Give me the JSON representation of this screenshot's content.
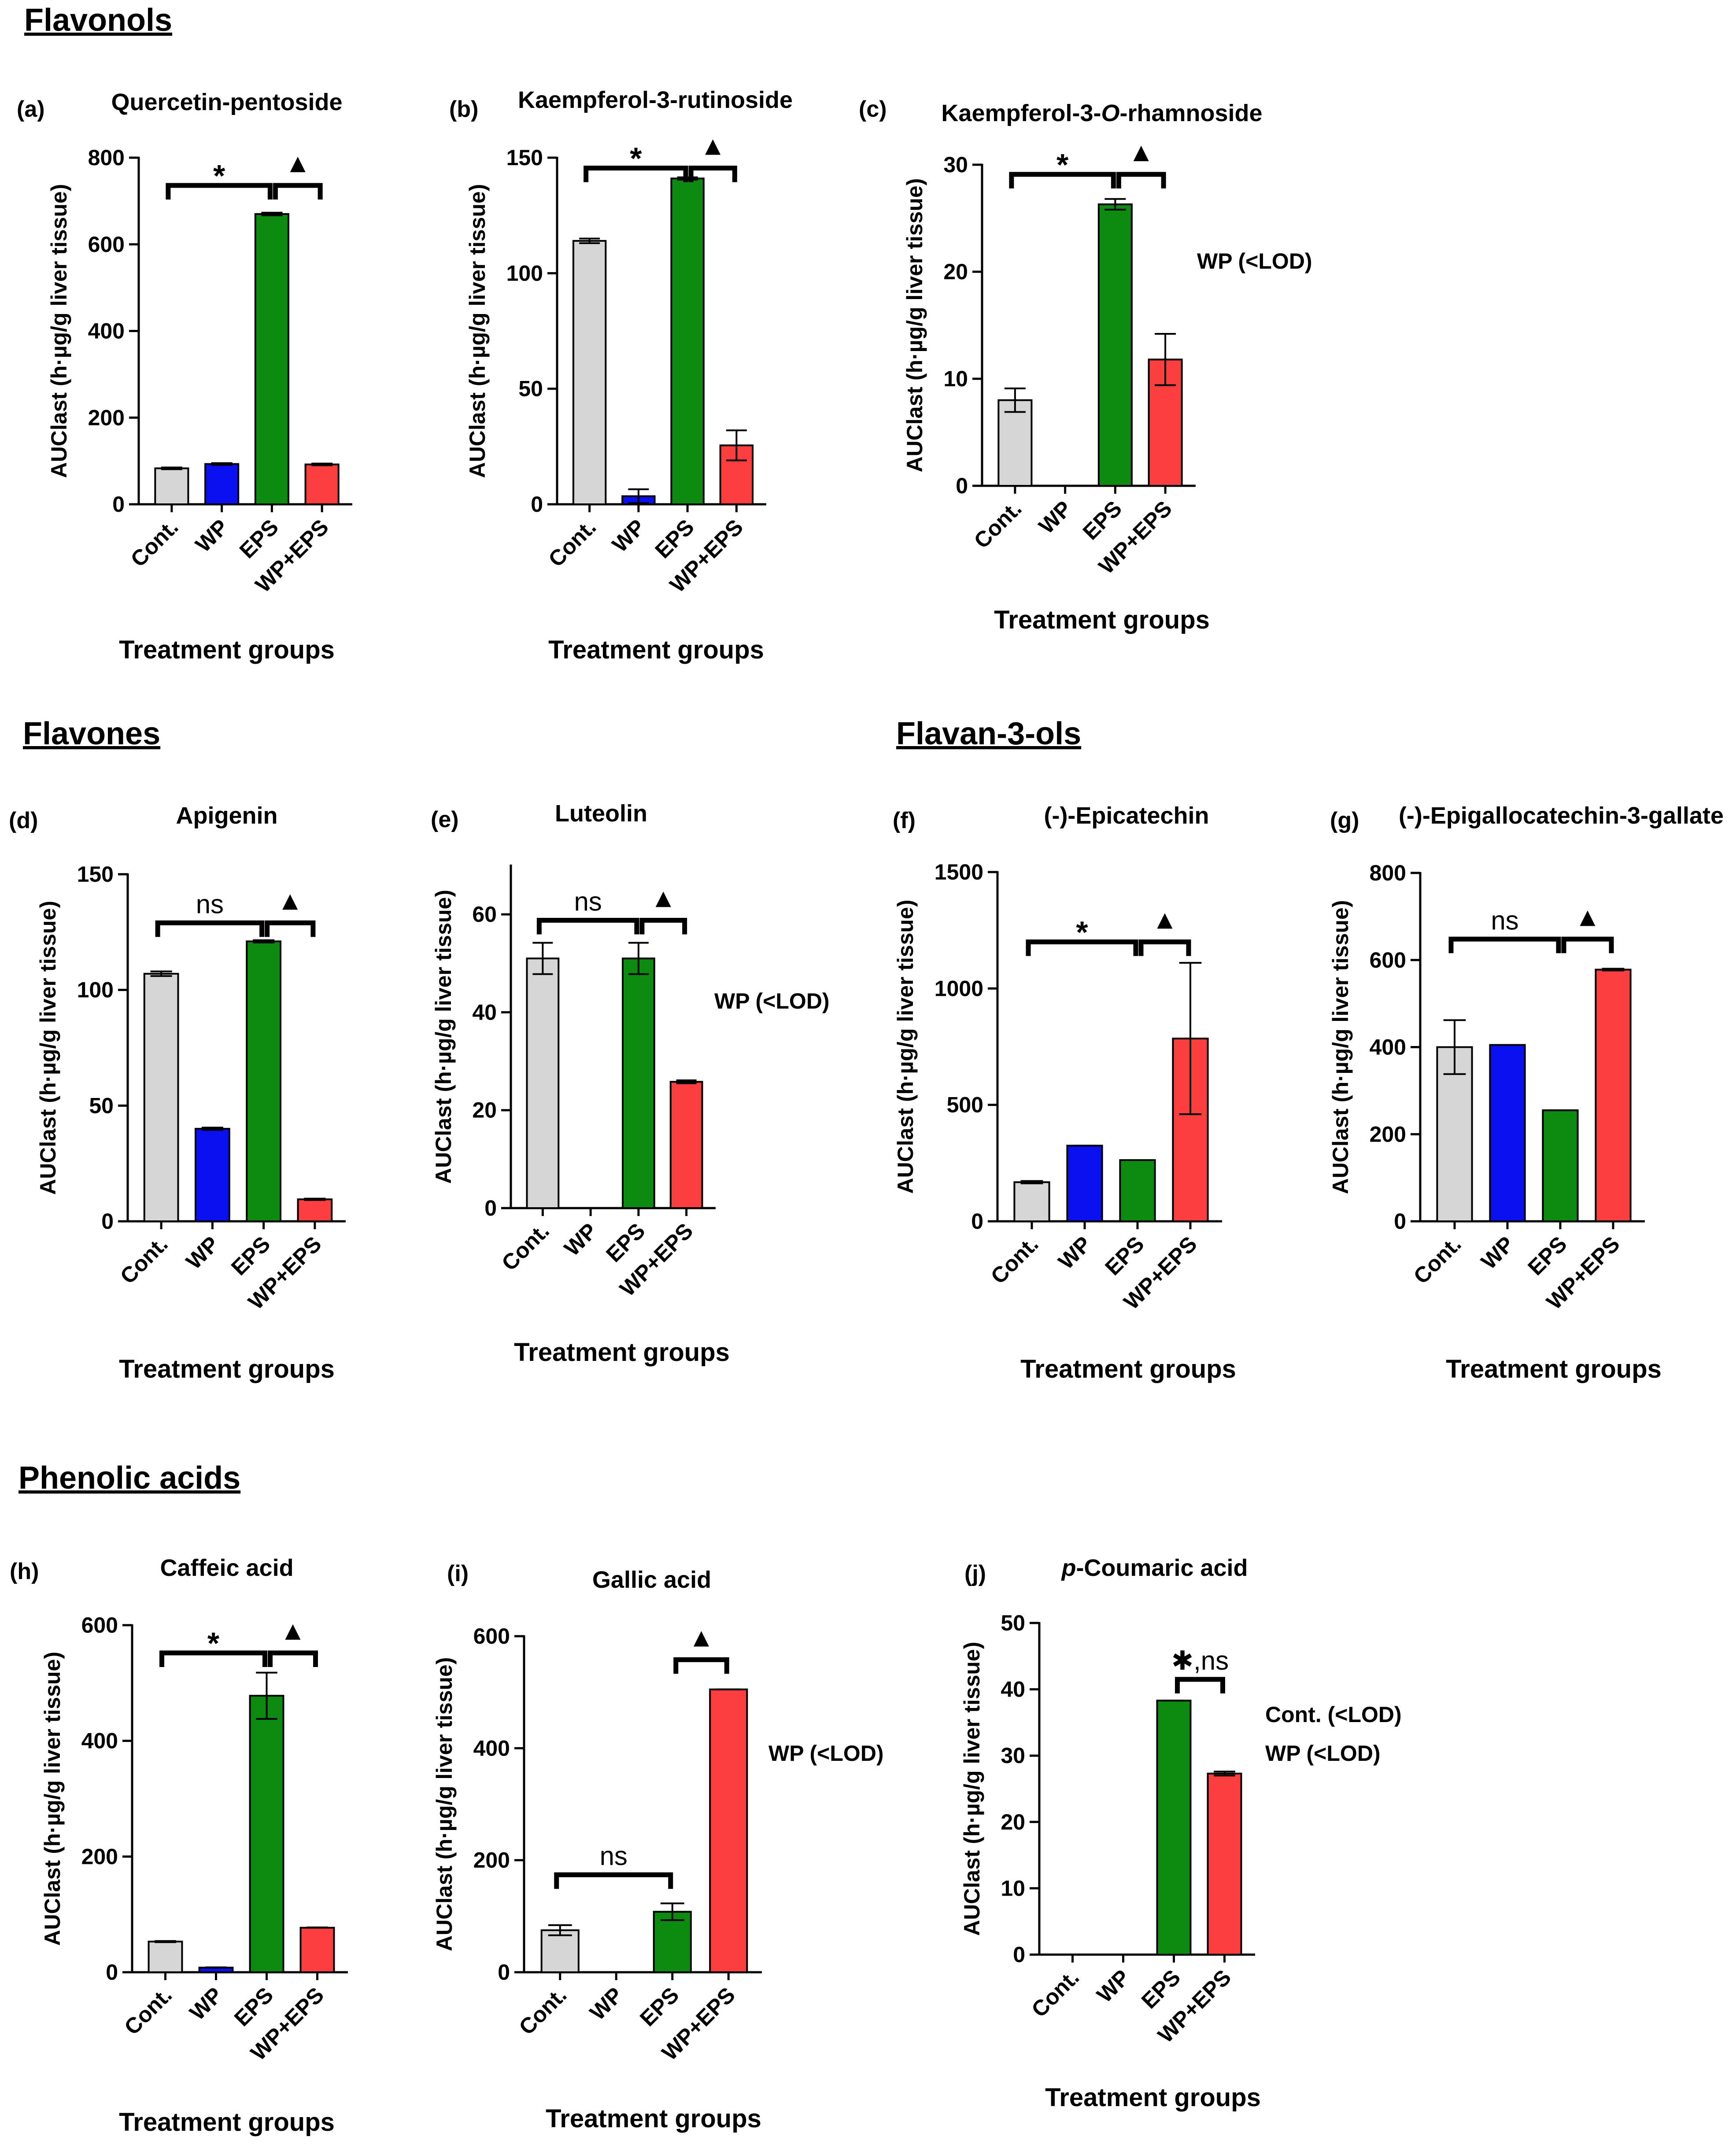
{
  "sections": [
    "Flavonols",
    "Flavones",
    "Flavan-3-ols",
    "Phenolic acids"
  ],
  "colors": {
    "Cont.": "#d6d6d6",
    "WP": "#0a10ee",
    "EPS": "#0d8a10",
    "WP+EPS": "#fb3f3f",
    "axis": "#000000"
  },
  "chart_data": [
    {
      "id": "a",
      "letter": "(a)",
      "section": "Flavonols",
      "type": "bar",
      "title": "Quercetin-pentoside",
      "xlabel": "Treatment groups",
      "ylabel": "AUClast (h·µg/g liver tissue)",
      "categories": [
        "Cont.",
        "WP",
        "EPS",
        "WP+EPS"
      ],
      "values": [
        83,
        93,
        670,
        92
      ],
      "errors": [
        2,
        2,
        3,
        2
      ],
      "ylim": [
        0,
        800
      ],
      "yticks": [
        "0",
        "200",
        "400",
        "600",
        "800"
      ],
      "annotations": [
        {
          "from": 0,
          "to": 2,
          "label": "*",
          "level": 0.92
        },
        {
          "from": 2,
          "to": 3,
          "label": "▲",
          "level": 0.92
        }
      ],
      "notes": []
    },
    {
      "id": "b",
      "letter": "(b)",
      "section": "Flavonols",
      "type": "bar",
      "title": "Kaempferol-3-rutinoside",
      "xlabel": "Treatment groups",
      "ylabel": "AUClast (h·µg/g liver tissue)",
      "categories": [
        "Cont.",
        "WP",
        "EPS",
        "WP+EPS"
      ],
      "values": [
        114,
        3.5,
        141,
        25.5
      ],
      "errors": [
        1,
        3,
        0.5,
        6.5
      ],
      "ylim": [
        0,
        150
      ],
      "yticks": [
        "0",
        "50",
        "100",
        "150"
      ],
      "annotations": [
        {
          "from": 0,
          "to": 2,
          "label": "*",
          "level": 0.97
        },
        {
          "from": 2,
          "to": 3,
          "label": "▲",
          "level": 0.97
        }
      ],
      "notes": []
    },
    {
      "id": "c",
      "letter": "(c)",
      "section": "Flavonols",
      "type": "bar",
      "title": "Kaempferol-3-O-rhamnoside",
      "xlabel": "Treatment groups",
      "ylabel": "AUClast (h·µg/g liver tissue)",
      "categories": [
        "Cont.",
        "WP",
        "EPS",
        "WP+EPS"
      ],
      "values": [
        8,
        0,
        26.3,
        11.8
      ],
      "errors": [
        1.1,
        0,
        0.5,
        2.4
      ],
      "ylim": [
        0,
        30
      ],
      "yticks": [
        "0",
        "10",
        "20",
        "30"
      ],
      "annotations": [
        {
          "from": 0,
          "to": 2,
          "label": "*",
          "level": 0.97
        },
        {
          "from": 2,
          "to": 3,
          "label": "▲",
          "level": 0.97
        }
      ],
      "notes": [
        "WP (<LOD)"
      ]
    },
    {
      "id": "d",
      "letter": "(d)",
      "section": "Flavones",
      "type": "bar",
      "title": "Apigenin",
      "xlabel": "Treatment groups",
      "ylabel": "AUClast (h·µg/g liver tissue)",
      "categories": [
        "Cont.",
        "WP",
        "EPS",
        "WP+EPS"
      ],
      "values": [
        107,
        40,
        121,
        9.5
      ],
      "errors": [
        1,
        0.5,
        0.5,
        0.3
      ],
      "ylim": [
        0,
        150
      ],
      "yticks": [
        "0",
        "50",
        "100",
        "150"
      ],
      "annotations": [
        {
          "from": 0,
          "to": 2,
          "label": "ns",
          "level": 0.86
        },
        {
          "from": 2,
          "to": 3,
          "label": "▲",
          "level": 0.86
        }
      ],
      "notes": []
    },
    {
      "id": "e",
      "letter": "(e)",
      "section": "Flavones",
      "type": "bar",
      "title": "Luteolin",
      "xlabel": "Treatment groups",
      "ylabel": "AUClast (h·µg/g liver tissue)",
      "categories": [
        "Cont.",
        "WP",
        "EPS",
        "WP+EPS"
      ],
      "values": [
        51,
        0,
        51,
        25.8
      ],
      "errors": [
        3.2,
        0,
        3.2,
        0.3
      ],
      "ylim": [
        0,
        70
      ],
      "yticks": [
        "0",
        "20",
        "40",
        "60"
      ],
      "annotations": [
        {
          "from": 0,
          "to": 2,
          "label": "ns",
          "level": 0.84
        },
        {
          "from": 2,
          "to": 3,
          "label": "▲",
          "level": 0.84
        }
      ],
      "notes": [
        "WP (<LOD)"
      ]
    },
    {
      "id": "f",
      "letter": "(f)",
      "section": "Flavan-3-ols",
      "type": "bar",
      "title": "(-)-Epicatechin",
      "xlabel": "Treatment groups",
      "ylabel": "AUClast (h·µg/g liver tissue)",
      "categories": [
        "Cont.",
        "WP",
        "EPS",
        "WP+EPS"
      ],
      "values": [
        168,
        325,
        263,
        785
      ],
      "errors": [
        5,
        0,
        0,
        325
      ],
      "ylim": [
        0,
        1500
      ],
      "yticks": [
        "0",
        "500",
        "1000",
        "1500"
      ],
      "annotations": [
        {
          "from": 0,
          "to": 2,
          "label": "*",
          "level": 0.8
        },
        {
          "from": 2,
          "to": 3,
          "label": "▲",
          "level": 0.8
        }
      ],
      "notes": []
    },
    {
      "id": "g",
      "letter": "(g)",
      "section": "Flavan-3-ols",
      "type": "bar",
      "title": "(-)-Epigallocatechin-3-gallate",
      "xlabel": "Treatment groups",
      "ylabel": "AUClast (h·µg/g liver tissue)",
      "categories": [
        "Cont.",
        "WP",
        "EPS",
        "WP+EPS"
      ],
      "values": [
        400,
        405,
        255,
        578
      ],
      "errors": [
        62,
        0,
        0,
        2
      ],
      "ylim": [
        0,
        800
      ],
      "yticks": [
        "0",
        "200",
        "400",
        "600",
        "800"
      ],
      "annotations": [
        {
          "from": 0,
          "to": 2,
          "label": "ns",
          "level": 0.81
        },
        {
          "from": 2,
          "to": 3,
          "label": "▲",
          "level": 0.81
        }
      ],
      "notes": []
    },
    {
      "id": "h",
      "letter": "(h)",
      "section": "Phenolic acids",
      "type": "bar",
      "title": "Caffeic acid",
      "xlabel": "Treatment groups",
      "ylabel": "AUClast (h·µg/g liver tissue)",
      "categories": [
        "Cont.",
        "WP",
        "EPS",
        "WP+EPS"
      ],
      "values": [
        53,
        8,
        478,
        77
      ],
      "errors": [
        1,
        0.5,
        40,
        0.5
      ],
      "ylim": [
        0,
        600
      ],
      "yticks": [
        "0",
        "200",
        "400",
        "600"
      ],
      "annotations": [
        {
          "from": 0,
          "to": 2,
          "label": "*",
          "level": 0.92
        },
        {
          "from": 2,
          "to": 3,
          "label": "▲",
          "level": 0.92
        }
      ],
      "notes": []
    },
    {
      "id": "i",
      "letter": "(i)",
      "section": "Phenolic acids",
      "type": "bar",
      "title": "Gallic acid",
      "xlabel": "Treatment groups",
      "ylabel": "AUClast (h·µg/g liver tissue)",
      "categories": [
        "Cont.",
        "WP",
        "EPS",
        "WP+EPS"
      ],
      "values": [
        75,
        0,
        108,
        505
      ],
      "errors": [
        9,
        0,
        15,
        0
      ],
      "ylim": [
        0,
        600
      ],
      "yticks": [
        "0",
        "200",
        "400",
        "600"
      ],
      "annotations": [
        {
          "from": 0,
          "to": 2,
          "label": "ns",
          "level": 0.29
        },
        {
          "from": 2,
          "to": 3,
          "label": "▲",
          "level": 0.93
        }
      ],
      "notes": [
        "WP (<LOD)"
      ]
    },
    {
      "id": "j",
      "letter": "(j)",
      "section": "Phenolic acids",
      "type": "bar",
      "title": "p-Coumaric acid",
      "xlabel": "Treatment groups",
      "ylabel": "AUClast (h·µg/g liver tissue)",
      "categories": [
        "Cont.",
        "WP",
        "EPS",
        "WP+EPS"
      ],
      "values": [
        0,
        0,
        38.3,
        27.3
      ],
      "errors": [
        0,
        0,
        0,
        0.3
      ],
      "ylim": [
        0,
        50
      ],
      "yticks": [
        "0",
        "10",
        "20",
        "30",
        "40",
        "50"
      ],
      "annotations": [
        {
          "from": 2,
          "to": 3,
          "label": "✱,ns",
          "level": 0.83
        }
      ],
      "notes": [
        "Cont. (<LOD)",
        "WP (<LOD)"
      ]
    }
  ]
}
